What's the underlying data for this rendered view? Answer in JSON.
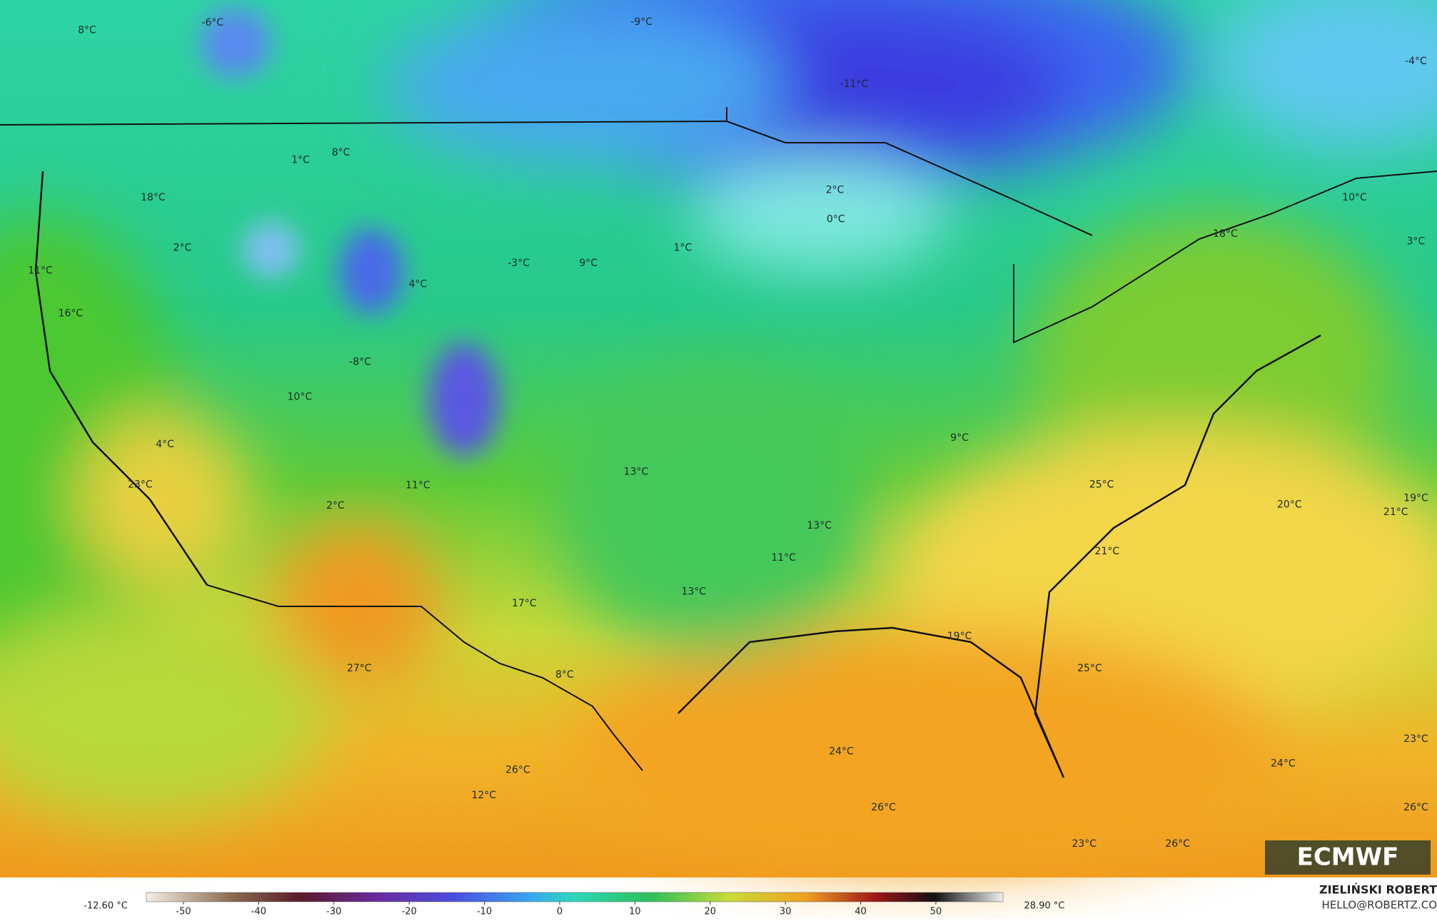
{
  "map": {
    "labels": [
      "8°C",
      "-6°C",
      "-9°C",
      "-11°C",
      "-4°C",
      "1°C",
      "8°C",
      "18°C",
      "2°C",
      "0°C",
      "10°C",
      "2°C",
      "1°C",
      "-3°C",
      "9°C",
      "18°C",
      "3°C",
      "11°C",
      "4°C",
      "16°C",
      "-8°C",
      "10°C",
      "9°C",
      "4°C",
      "13°C",
      "23°C",
      "11°C",
      "25°C",
      "2°C",
      "20°C",
      "19°C",
      "21°C",
      "13°C",
      "21°C",
      "11°C",
      "13°C",
      "17°C",
      "19°C",
      "27°C",
      "25°C",
      "8°C",
      "23°C",
      "24°C",
      "24°C",
      "26°C",
      "12°C",
      "26°C",
      "26°C",
      "23°C",
      "26°C"
    ],
    "colorbar": {
      "min_label": "-12.60 °C",
      "max_label": "28.90 °C",
      "ticks": [
        -50,
        -40,
        -30,
        -20,
        -10,
        0,
        10,
        20,
        30,
        40,
        50
      ]
    },
    "credit": {
      "author": "ZIELIŃSKI ROBERT",
      "contact": "HELLO@ROBERTZ.CO"
    },
    "logo": "ECMWF"
  }
}
